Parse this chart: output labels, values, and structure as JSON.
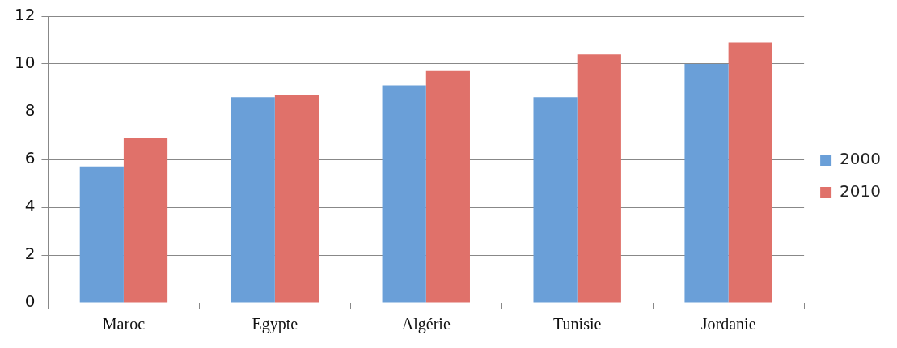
{
  "chart_data": {
    "type": "bar",
    "categories": [
      "Maroc",
      "Egypte",
      "Algérie",
      "Tunisie",
      "Jordanie"
    ],
    "series": [
      {
        "name": "2000",
        "color": "#6a9fd8",
        "values": [
          5.7,
          8.6,
          9.1,
          8.6,
          10.0
        ]
      },
      {
        "name": "2010",
        "color": "#e0716a",
        "values": [
          6.9,
          8.7,
          9.7,
          10.4,
          10.9
        ]
      }
    ],
    "ylim": [
      0,
      12
    ],
    "yticks": [
      0,
      2,
      4,
      6,
      8,
      10,
      12
    ],
    "grid": "y",
    "legend": "right"
  }
}
